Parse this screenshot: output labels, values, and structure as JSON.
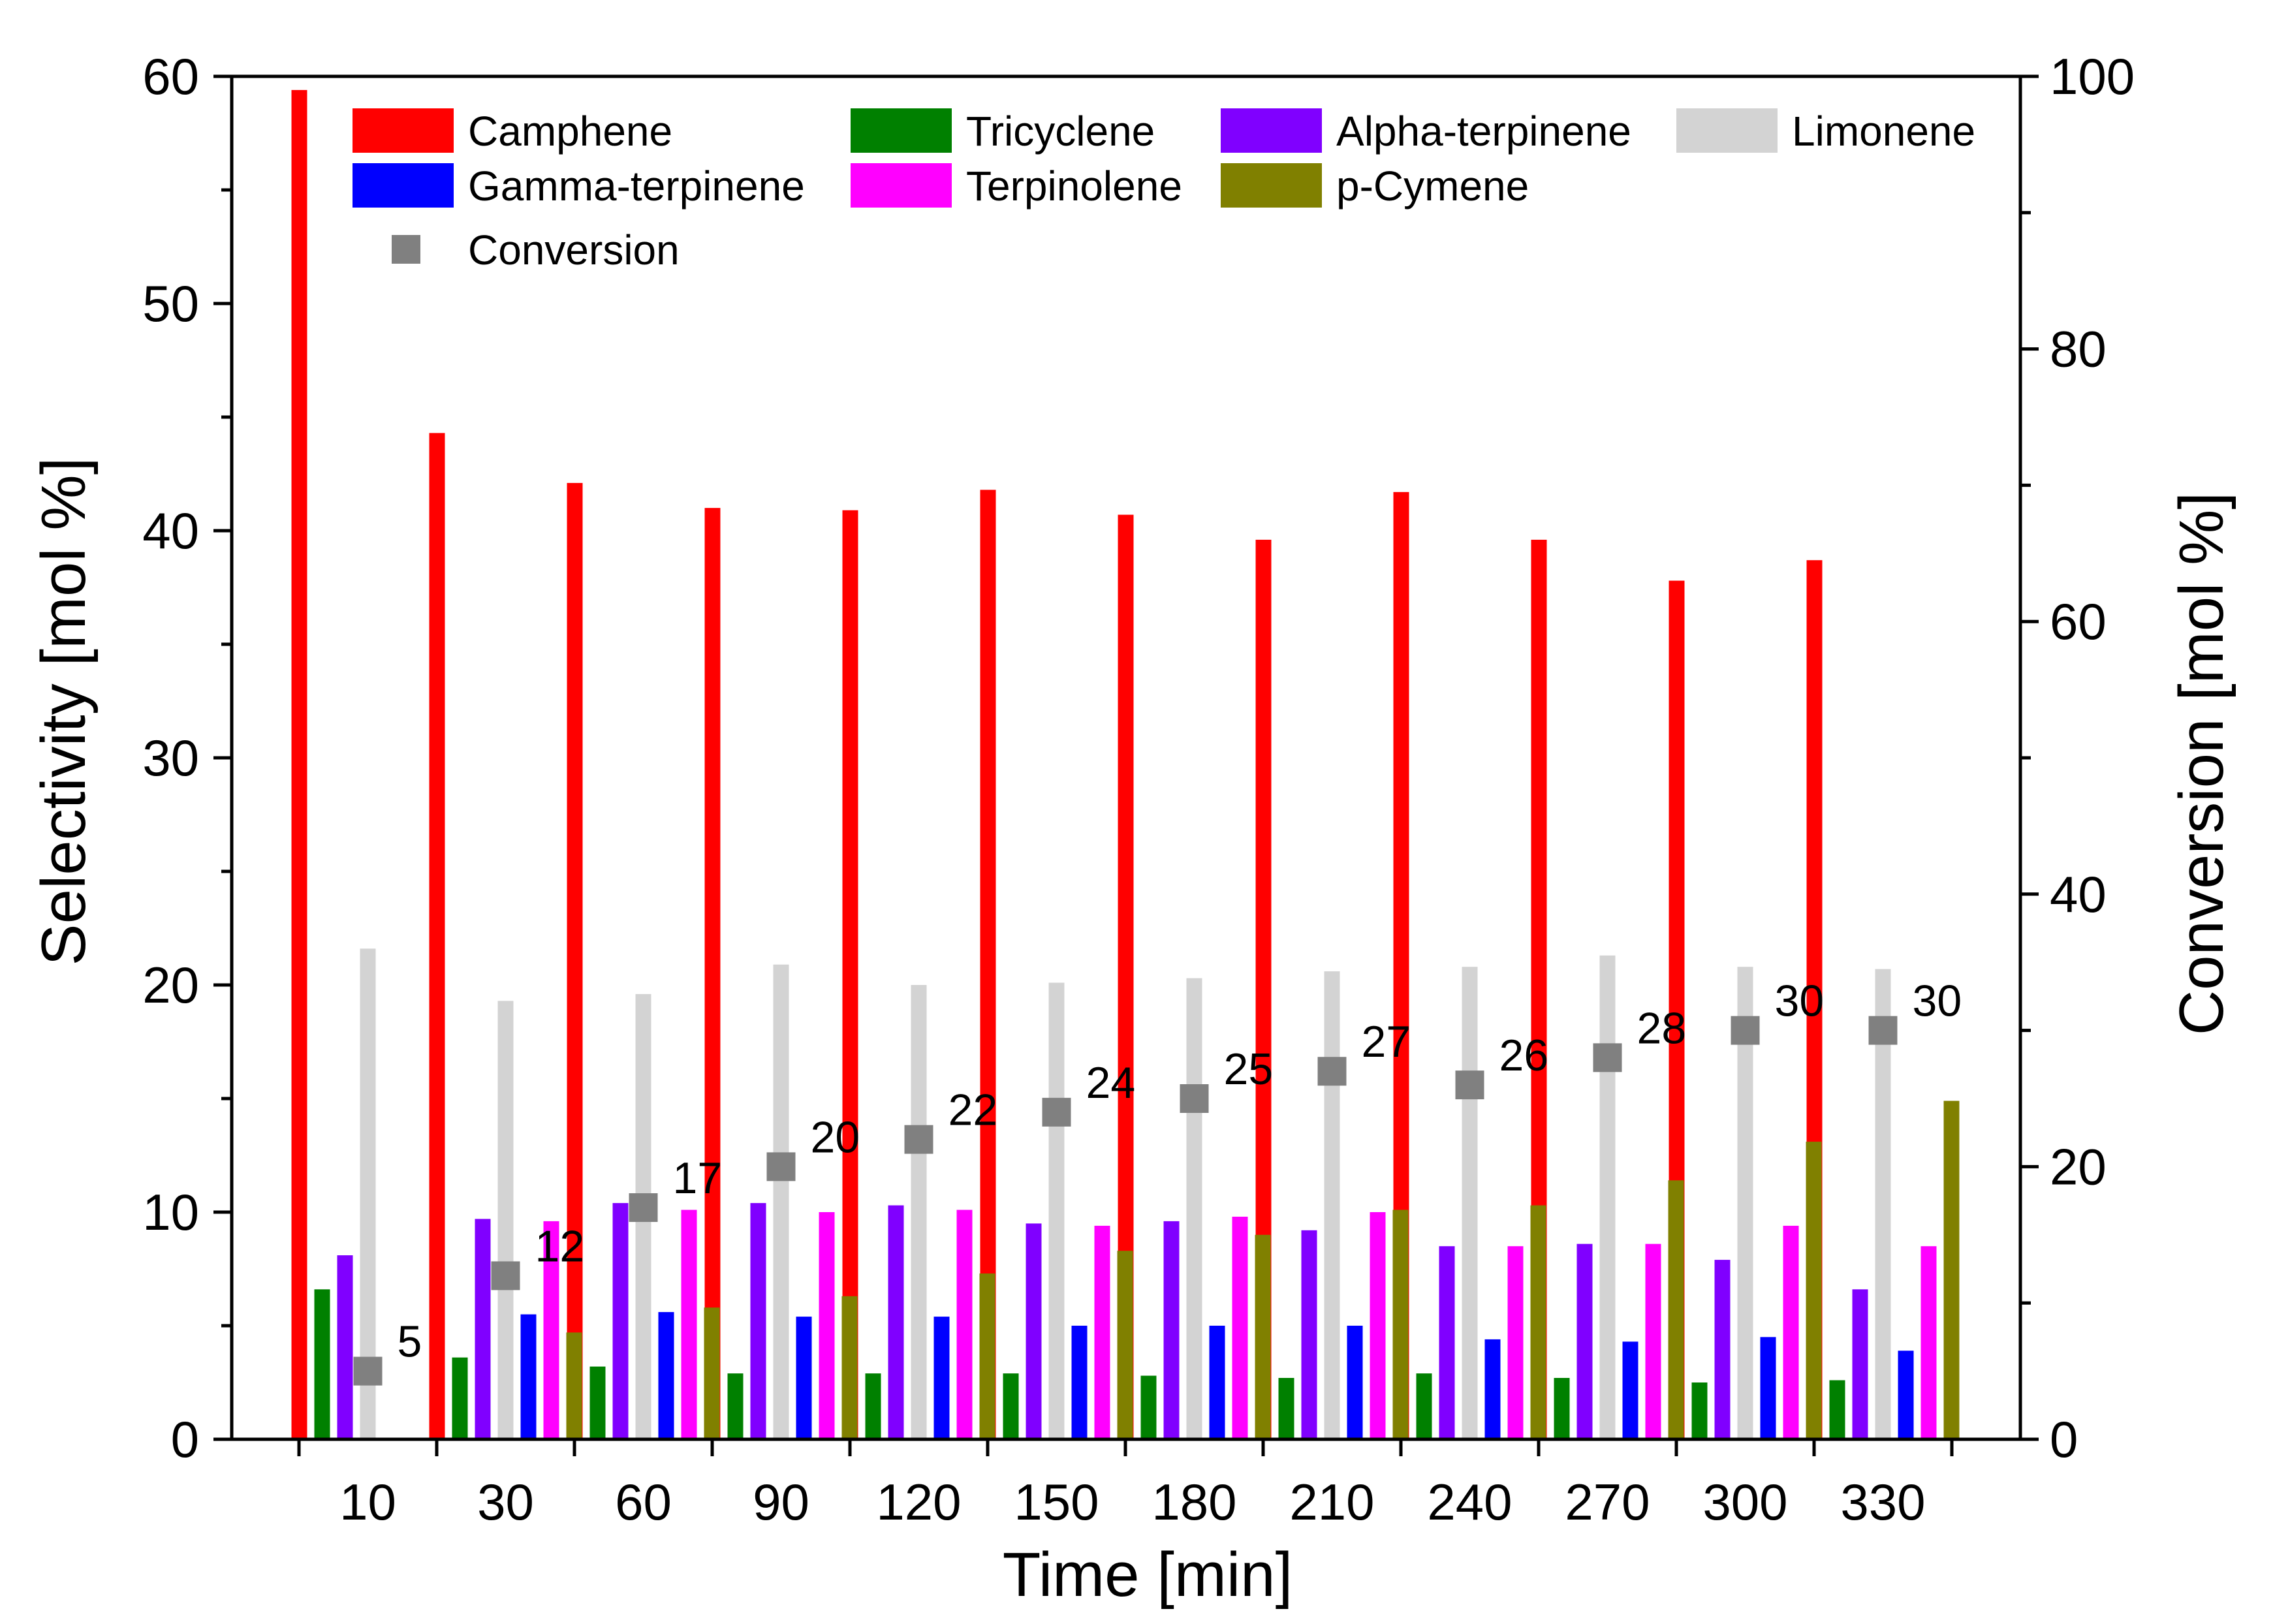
{
  "chart_data": {
    "type": "bar",
    "title": "",
    "xlabel": "Time [min]",
    "ylabel": "Selectivity [mol %]",
    "y2label": "Conversion [mol %]",
    "categories": [
      "10",
      "30",
      "60",
      "90",
      "120",
      "150",
      "180",
      "210",
      "240",
      "270",
      "300",
      "330"
    ],
    "ylim": [
      0,
      60
    ],
    "y2lim": [
      0,
      100
    ],
    "yticks": [
      "0",
      "10",
      "20",
      "30",
      "40",
      "50",
      "60"
    ],
    "y2ticks": [
      "0",
      "20",
      "40",
      "60",
      "80",
      "100"
    ],
    "legend_position": "top",
    "series": [
      {
        "name": "Camphene",
        "color": "#ff0000",
        "values": [
          59.4,
          44.3,
          42.1,
          41.0,
          40.9,
          41.8,
          40.7,
          39.6,
          41.7,
          39.6,
          37.8,
          38.7
        ]
      },
      {
        "name": "Tricyclene",
        "color": "#008000",
        "values": [
          6.6,
          3.6,
          3.2,
          2.9,
          2.9,
          2.9,
          2.8,
          2.7,
          2.9,
          2.7,
          2.5,
          2.6
        ]
      },
      {
        "name": "Alpha-terpinene",
        "color": "#8000ff",
        "values": [
          8.1,
          9.7,
          10.4,
          10.4,
          10.3,
          9.5,
          9.6,
          9.2,
          8.5,
          8.6,
          7.9,
          6.6
        ]
      },
      {
        "name": "Limonene",
        "color": "#d3d3d3",
        "values": [
          21.6,
          19.3,
          19.6,
          20.9,
          20.0,
          20.1,
          20.3,
          20.6,
          20.8,
          21.3,
          20.8,
          20.7
        ]
      },
      {
        "name": "Gamma-terpinene",
        "color": "#0000ff",
        "values": [
          0,
          5.5,
          5.6,
          5.4,
          5.4,
          5.0,
          5.0,
          5.0,
          4.4,
          4.3,
          4.5,
          3.9
        ]
      },
      {
        "name": "Terpinolene",
        "color": "#ff00ff",
        "values": [
          0,
          9.6,
          10.1,
          10.0,
          10.1,
          9.4,
          9.8,
          10.0,
          8.5,
          8.6,
          9.4,
          8.5
        ]
      },
      {
        "name": "p-Cymene",
        "color": "#808000",
        "values": [
          0,
          4.7,
          5.8,
          6.3,
          7.3,
          8.3,
          9.0,
          10.1,
          10.3,
          11.4,
          13.1,
          14.9
        ]
      }
    ],
    "conversion": {
      "name": "Conversion",
      "color": "#808080",
      "axis": "right",
      "values": [
        5,
        12,
        17,
        20,
        22,
        24,
        25,
        27,
        26,
        28,
        30,
        30
      ],
      "labels": [
        "5",
        "12",
        "17",
        "20",
        "22",
        "24",
        "25",
        "27",
        "26",
        "28",
        "30",
        "30"
      ]
    }
  }
}
